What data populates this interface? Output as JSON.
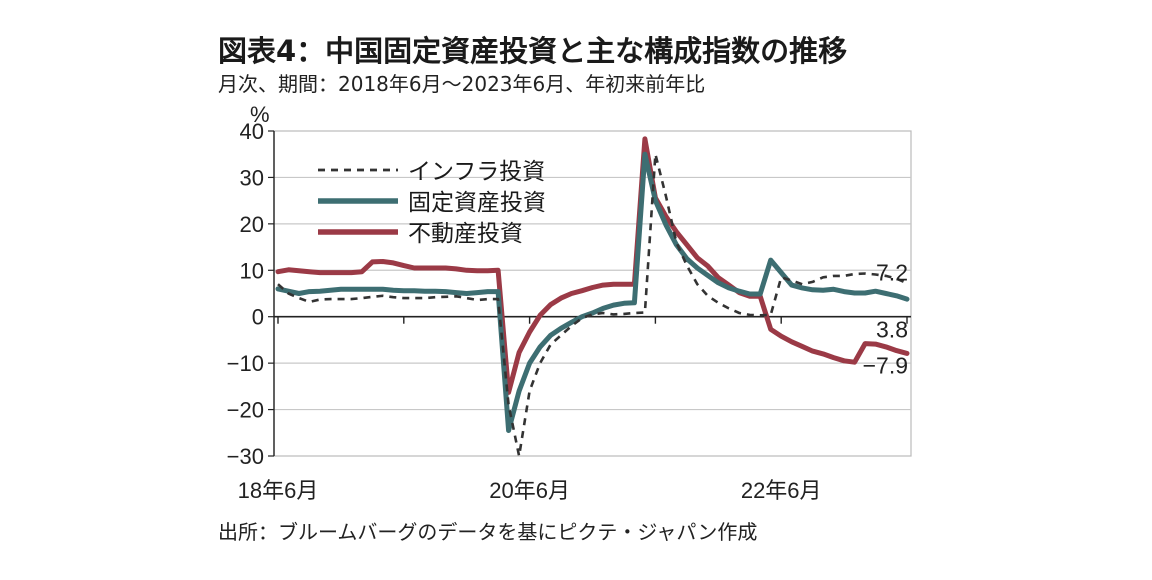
{
  "chart_data": {
    "type": "line",
    "title": "図表4：中国固定資産投資と主な構成指数の推移",
    "subtitle": "月次、期間：2018年6月～2023年6月、年初来前年比",
    "source": "出所：ブルームバーグのデータを基にピクテ・ジャパン作成",
    "ylabel": "%",
    "ylim": [
      -30,
      40
    ],
    "yticks": [
      "40",
      "30",
      "20",
      "10",
      "0",
      "−10",
      "−20",
      "−30"
    ],
    "ytick_values": [
      40,
      30,
      20,
      10,
      0,
      -10,
      -20,
      -30
    ],
    "x_tick_labels": [
      "18年6月",
      "20年6月",
      "22年6月"
    ],
    "x_tick_months": [
      0,
      24,
      48
    ],
    "grid": "horizontal",
    "legend_position": "top-left",
    "end_labels": [
      {
        "text": "7.2",
        "y": 9.5
      },
      {
        "text": "3.8",
        "y": -2.8
      },
      {
        "text": "−7.9",
        "y": -10.5
      }
    ],
    "series": [
      {
        "name": "インフラ投資",
        "color": "#333333",
        "style": "dashed",
        "points": [
          [
            0,
            7
          ],
          [
            1,
            5
          ],
          [
            2,
            4
          ],
          [
            3,
            3.2
          ],
          [
            4,
            3.7
          ],
          [
            5,
            3.8
          ],
          [
            6,
            3.8
          ],
          [
            7,
            3.8
          ],
          [
            8,
            4
          ],
          [
            9,
            4.3
          ],
          [
            10,
            4.5
          ],
          [
            11,
            4.2
          ],
          [
            12,
            4
          ],
          [
            13,
            4
          ],
          [
            14,
            4
          ],
          [
            15,
            4.2
          ],
          [
            16,
            4.3
          ],
          [
            17,
            4.4
          ],
          [
            18,
            4
          ],
          [
            19,
            3.6
          ],
          [
            20,
            3.8
          ],
          [
            21,
            3.8
          ],
          [
            22,
            -19
          ],
          [
            23,
            -30
          ],
          [
            24,
            -16
          ],
          [
            25,
            -10
          ],
          [
            26,
            -6
          ],
          [
            27,
            -4
          ],
          [
            28,
            -2
          ],
          [
            29,
            -0.3
          ],
          [
            30,
            0.5
          ],
          [
            31,
            0.8
          ],
          [
            32,
            0.5
          ],
          [
            33,
            0.6
          ],
          [
            34,
            0.8
          ],
          [
            35,
            0.9
          ],
          [
            36,
            35
          ],
          [
            37,
            26
          ],
          [
            38,
            16
          ],
          [
            39,
            11
          ],
          [
            40,
            7
          ],
          [
            41,
            4.5
          ],
          [
            42,
            3
          ],
          [
            43,
            1.8
          ],
          [
            44,
            0.8
          ],
          [
            45,
            0.4
          ],
          [
            46,
            0.3
          ],
          [
            47,
            0.4
          ],
          [
            48,
            8.5
          ],
          [
            49,
            7.8
          ],
          [
            50,
            7
          ],
          [
            51,
            7.5
          ],
          [
            52,
            8.5
          ],
          [
            53,
            8.8
          ],
          [
            54,
            8.8
          ],
          [
            55,
            9.2
          ],
          [
            56,
            9.3
          ],
          [
            57,
            9.1
          ],
          [
            58,
            8.8
          ],
          [
            59,
            8.2
          ],
          [
            60,
            7.2
          ]
        ]
      },
      {
        "name": "固定資産投資",
        "color": "#3d6e72",
        "style": "solid",
        "points": [
          [
            0,
            6
          ],
          [
            1,
            5.5
          ],
          [
            2,
            5
          ],
          [
            3,
            5.4
          ],
          [
            4,
            5.5
          ],
          [
            5,
            5.7
          ],
          [
            6,
            5.9
          ],
          [
            7,
            5.9
          ],
          [
            8,
            5.9
          ],
          [
            9,
            5.9
          ],
          [
            10,
            5.9
          ],
          [
            11,
            5.7
          ],
          [
            12,
            5.6
          ],
          [
            13,
            5.6
          ],
          [
            14,
            5.5
          ],
          [
            15,
            5.5
          ],
          [
            16,
            5.4
          ],
          [
            17,
            5.2
          ],
          [
            18,
            5
          ],
          [
            19,
            5.2
          ],
          [
            20,
            5.4
          ],
          [
            21,
            5.4
          ],
          [
            22,
            -24.5
          ],
          [
            23,
            -16
          ],
          [
            24,
            -10
          ],
          [
            25,
            -6.5
          ],
          [
            26,
            -4
          ],
          [
            27,
            -2.5
          ],
          [
            28,
            -1.2
          ],
          [
            29,
            0
          ],
          [
            30,
            0.8
          ],
          [
            31,
            1.8
          ],
          [
            32,
            2.5
          ],
          [
            33,
            2.9
          ],
          [
            34,
            3
          ],
          [
            35,
            35
          ],
          [
            36,
            25
          ],
          [
            37,
            19.8
          ],
          [
            38,
            15.5
          ],
          [
            39,
            12.5
          ],
          [
            40,
            10.5
          ],
          [
            41,
            8.9
          ],
          [
            42,
            7.3
          ],
          [
            43,
            6.2
          ],
          [
            44,
            5.5
          ],
          [
            45,
            4.9
          ],
          [
            46,
            4.9
          ],
          [
            47,
            12.2
          ],
          [
            48,
            9.5
          ],
          [
            49,
            6.8
          ],
          [
            50,
            6.2
          ],
          [
            51,
            5.8
          ],
          [
            52,
            5.7
          ],
          [
            53,
            5.9
          ],
          [
            54,
            5.4
          ],
          [
            55,
            5.1
          ],
          [
            56,
            5.1
          ],
          [
            57,
            5.5
          ],
          [
            58,
            5
          ],
          [
            59,
            4.5
          ],
          [
            60,
            3.8
          ]
        ]
      },
      {
        "name": "不動産投資",
        "color": "#9b3a46",
        "style": "solid",
        "points": [
          [
            0,
            9.7
          ],
          [
            1,
            10.1
          ],
          [
            2,
            9.9
          ],
          [
            3,
            9.7
          ],
          [
            4,
            9.5
          ],
          [
            5,
            9.5
          ],
          [
            6,
            9.5
          ],
          [
            7,
            9.5
          ],
          [
            8,
            9.7
          ],
          [
            9,
            11.8
          ],
          [
            10,
            11.9
          ],
          [
            11,
            11.6
          ],
          [
            12,
            11
          ],
          [
            13,
            10.5
          ],
          [
            14,
            10.5
          ],
          [
            15,
            10.5
          ],
          [
            16,
            10.5
          ],
          [
            17,
            10.3
          ],
          [
            18,
            10
          ],
          [
            19,
            9.9
          ],
          [
            20,
            9.9
          ],
          [
            21,
            10
          ],
          [
            22,
            -16.3
          ],
          [
            23,
            -7.7
          ],
          [
            24,
            -3.3
          ],
          [
            25,
            0.3
          ],
          [
            26,
            2.6
          ],
          [
            27,
            4
          ],
          [
            28,
            5
          ],
          [
            29,
            5.6
          ],
          [
            30,
            6.3
          ],
          [
            31,
            6.8
          ],
          [
            32,
            7
          ],
          [
            33,
            7
          ],
          [
            34,
            7
          ],
          [
            35,
            38.3
          ],
          [
            36,
            25.6
          ],
          [
            37,
            21.6
          ],
          [
            38,
            18.3
          ],
          [
            39,
            15.5
          ],
          [
            40,
            12.7
          ],
          [
            41,
            10.9
          ],
          [
            42,
            8.4
          ],
          [
            43,
            6.8
          ],
          [
            44,
            5.2
          ],
          [
            45,
            4.4
          ],
          [
            46,
            4.4
          ],
          [
            47,
            -2.7
          ],
          [
            48,
            -4.2
          ],
          [
            49,
            -5.4
          ],
          [
            50,
            -6.4
          ],
          [
            51,
            -7.4
          ],
          [
            52,
            -8
          ],
          [
            53,
            -8.8
          ],
          [
            54,
            -9.5
          ],
          [
            55,
            -9.8
          ],
          [
            56,
            -5.8
          ],
          [
            57,
            -5.9
          ],
          [
            58,
            -6.5
          ],
          [
            59,
            -7.3
          ],
          [
            60,
            -7.9
          ]
        ]
      }
    ]
  }
}
